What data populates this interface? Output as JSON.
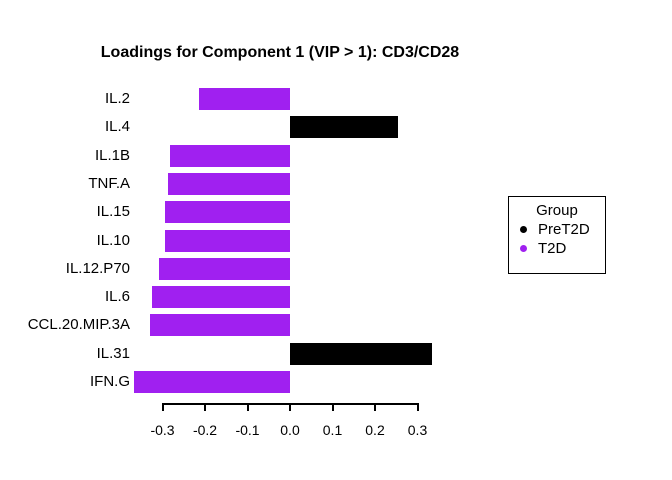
{
  "figure": {
    "background": "#FFFFFF"
  },
  "legend": {
    "title": "Group",
    "items": [
      {
        "label": "PreT2D",
        "color": "#000000"
      },
      {
        "label": "T2D",
        "color": "#A020F0"
      }
    ]
  },
  "chart_data": {
    "type": "bar",
    "orientation": "horizontal",
    "title": "Loadings for Component 1 (VIP > 1): CD3/CD28",
    "xlabel": "",
    "ylabel": "",
    "categories": [
      "IL.2",
      "IL.4",
      "IL.1B",
      "TNF.A",
      "IL.15",
      "IL.10",
      "IL.12.P70",
      "IL.6",
      "CCL.20.MIP.3A",
      "IL.31",
      "IFN.G"
    ],
    "values": [
      -0.215,
      0.253,
      -0.282,
      -0.287,
      -0.293,
      -0.294,
      -0.308,
      -0.325,
      -0.33,
      0.334,
      -0.367
    ],
    "groups": [
      "T2D",
      "PreT2D",
      "T2D",
      "T2D",
      "T2D",
      "T2D",
      "T2D",
      "T2D",
      "T2D",
      "PreT2D",
      "T2D"
    ],
    "bar_colors": {
      "PreT2D": "#000000",
      "T2D": "#A020F0"
    },
    "xtick_values": [
      -0.3,
      -0.2,
      -0.1,
      0.0,
      0.1,
      0.2,
      0.3
    ],
    "xticks": [
      "-0.3",
      "-0.2",
      "-0.1",
      "0.0",
      "0.1",
      "0.2",
      "0.3"
    ],
    "xlim": [
      -0.38,
      0.35
    ],
    "grid": false,
    "legend_position": "right"
  }
}
